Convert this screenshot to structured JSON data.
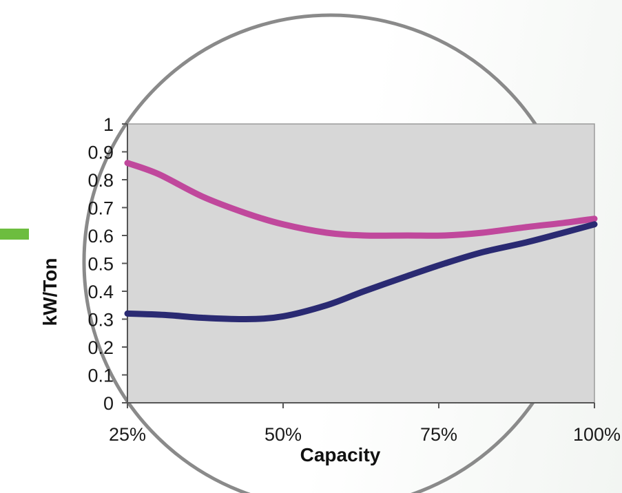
{
  "chart_data": {
    "type": "line",
    "xlabel": "Capacity",
    "ylabel": "kW/Ton",
    "ylim": [
      0,
      1
    ],
    "xlim": [
      25,
      100
    ],
    "x_ticks": [
      "25%",
      "50%",
      "75%",
      "100%"
    ],
    "y_ticks": [
      "0",
      "0.1",
      "0.2",
      "0.3",
      "0.4",
      "0.5",
      "0.6",
      "0.7",
      "0.8",
      "0.9",
      "1"
    ],
    "grid": false,
    "legend": "none",
    "series": [
      {
        "color": "#c0489c",
        "points": [
          [
            25,
            0.86
          ],
          [
            30,
            0.82
          ],
          [
            37,
            0.74
          ],
          [
            44,
            0.68
          ],
          [
            50,
            0.64
          ],
          [
            57,
            0.61
          ],
          [
            63,
            0.6
          ],
          [
            70,
            0.6
          ],
          [
            76,
            0.6
          ],
          [
            82,
            0.61
          ],
          [
            89,
            0.63
          ],
          [
            95,
            0.645
          ],
          [
            100,
            0.66
          ]
        ]
      },
      {
        "color": "#2a2a72",
        "points": [
          [
            25,
            0.32
          ],
          [
            31,
            0.315
          ],
          [
            37,
            0.305
          ],
          [
            44,
            0.3
          ],
          [
            50,
            0.31
          ],
          [
            57,
            0.35
          ],
          [
            63,
            0.4
          ],
          [
            70,
            0.455
          ],
          [
            76,
            0.5
          ],
          [
            82,
            0.54
          ],
          [
            89,
            0.575
          ],
          [
            95,
            0.61
          ],
          [
            100,
            0.64
          ]
        ]
      }
    ]
  },
  "decor": {
    "circle_color": "#8a8a8a",
    "accent_color": "#6dbd3f",
    "plot_bg": "#d7d7d7"
  }
}
